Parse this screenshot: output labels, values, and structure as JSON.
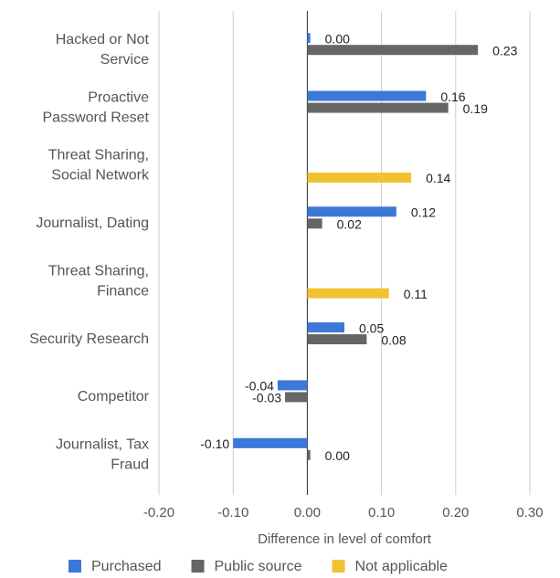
{
  "chart_data": {
    "type": "hbar",
    "x_label": "Difference in level of comfort",
    "categories": [
      [
        "Hacked or Not",
        "Service"
      ],
      [
        "Proactive",
        "Password Reset"
      ],
      [
        "Threat Sharing,",
        "Social Network"
      ],
      [
        "Journalist, Dating"
      ],
      [
        "Threat Sharing,",
        "Finance"
      ],
      [
        "Security Research"
      ],
      [
        "Competitor"
      ],
      [
        "Journalist, Tax",
        "Fraud"
      ]
    ],
    "series": [
      {
        "name": "Purchased",
        "color": "#3c78d8",
        "values": [
          0.004,
          0.16,
          null,
          0.12,
          null,
          0.05,
          -0.04,
          -0.1
        ],
        "value_labels": [
          "0.00",
          "0.16",
          null,
          "0.12",
          null,
          "0.05",
          "-0.04",
          "-0.10"
        ]
      },
      {
        "name": "Public source",
        "color": "#666666",
        "values": [
          0.23,
          0.19,
          null,
          0.02,
          null,
          0.08,
          -0.03,
          0.004
        ],
        "value_labels": [
          "0.23",
          "0.19",
          null,
          "0.02",
          null,
          "0.08",
          "-0.03",
          "0.00"
        ]
      },
      {
        "name": "Not applicable",
        "color": "#f1c232",
        "values": [
          null,
          null,
          0.14,
          null,
          0.11,
          null,
          null,
          null
        ],
        "value_labels": [
          null,
          null,
          "0.14",
          null,
          "0.11",
          null,
          null,
          null
        ]
      }
    ],
    "xlim": [
      -0.2,
      0.3
    ],
    "xticks": [
      {
        "value": -0.2,
        "label": "-0.20"
      },
      {
        "value": -0.1,
        "label": "-0.10"
      },
      {
        "value": 0,
        "label": "0.00"
      },
      {
        "value": 0.1,
        "label": "0.10"
      },
      {
        "value": 0.2,
        "label": "0.20"
      },
      {
        "value": 0.3,
        "label": "0.30"
      }
    ],
    "grid": true
  }
}
